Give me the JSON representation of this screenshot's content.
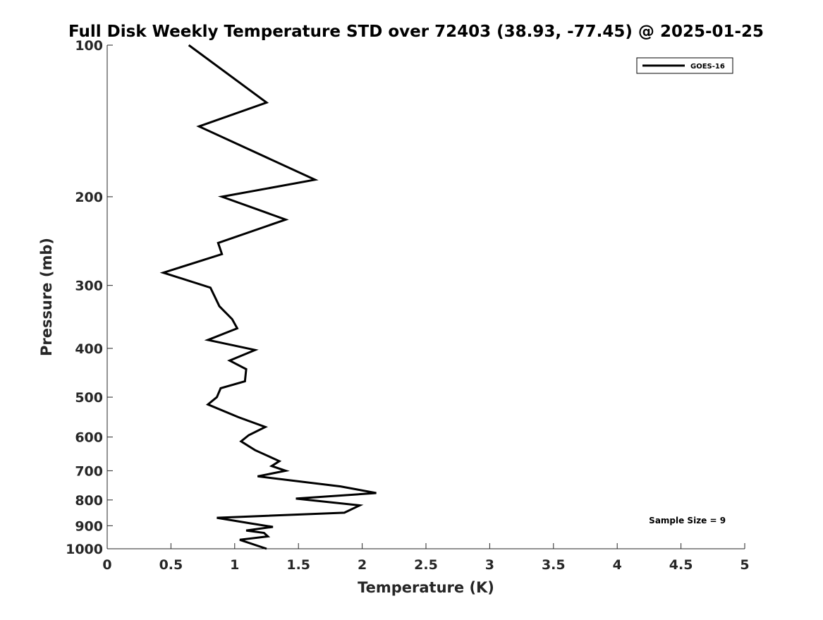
{
  "chart_data": {
    "type": "line",
    "title": "Full Disk Weekly Temperature STD over 72403 (38.93, -77.45) @ 2025-01-25",
    "xlabel": "Temperature (K)",
    "ylabel": "Pressure (mb)",
    "xlim": [
      0,
      5
    ],
    "ylim": [
      100,
      1000
    ],
    "y_scale": "log",
    "y_reversed": true,
    "grid": false,
    "legend_position": "top-right",
    "x_ticks": [
      "0",
      "0.5",
      "1",
      "1.5",
      "2",
      "2.5",
      "3",
      "3.5",
      "4",
      "4.5",
      "5"
    ],
    "y_ticks": [
      "100",
      "200",
      "300",
      "400",
      "500",
      "600",
      "700",
      "800",
      "900",
      "1000"
    ],
    "series": [
      {
        "name": "GOES-16",
        "color": "#000000",
        "x": [
          0.64,
          1.25,
          0.72,
          1.63,
          0.9,
          1.4,
          0.87,
          0.9,
          0.44,
          0.81,
          0.88,
          0.98,
          1.02,
          0.79,
          1.16,
          0.96,
          1.09,
          1.08,
          0.89,
          0.86,
          0.79,
          1.03,
          1.24,
          1.11,
          1.05,
          1.16,
          1.35,
          1.29,
          1.4,
          1.18,
          1.83,
          2.11,
          1.48,
          1.98,
          1.86,
          0.86,
          1.12,
          1.3,
          1.09,
          1.23,
          1.26,
          1.04,
          1.25
        ],
        "y": [
          100,
          130,
          145,
          185,
          200,
          222,
          247,
          260,
          283,
          303,
          330,
          350,
          365,
          385,
          403,
          423,
          440,
          465,
          480,
          500,
          517,
          548,
          573,
          595,
          612,
          637,
          670,
          685,
          700,
          718,
          752,
          775,
          795,
          820,
          848,
          868,
          890,
          905,
          920,
          930,
          945,
          960,
          1000
        ]
      }
    ],
    "annotations": [
      {
        "text": "Sample Size = 9",
        "x": 4.55,
        "y": 905
      }
    ]
  }
}
